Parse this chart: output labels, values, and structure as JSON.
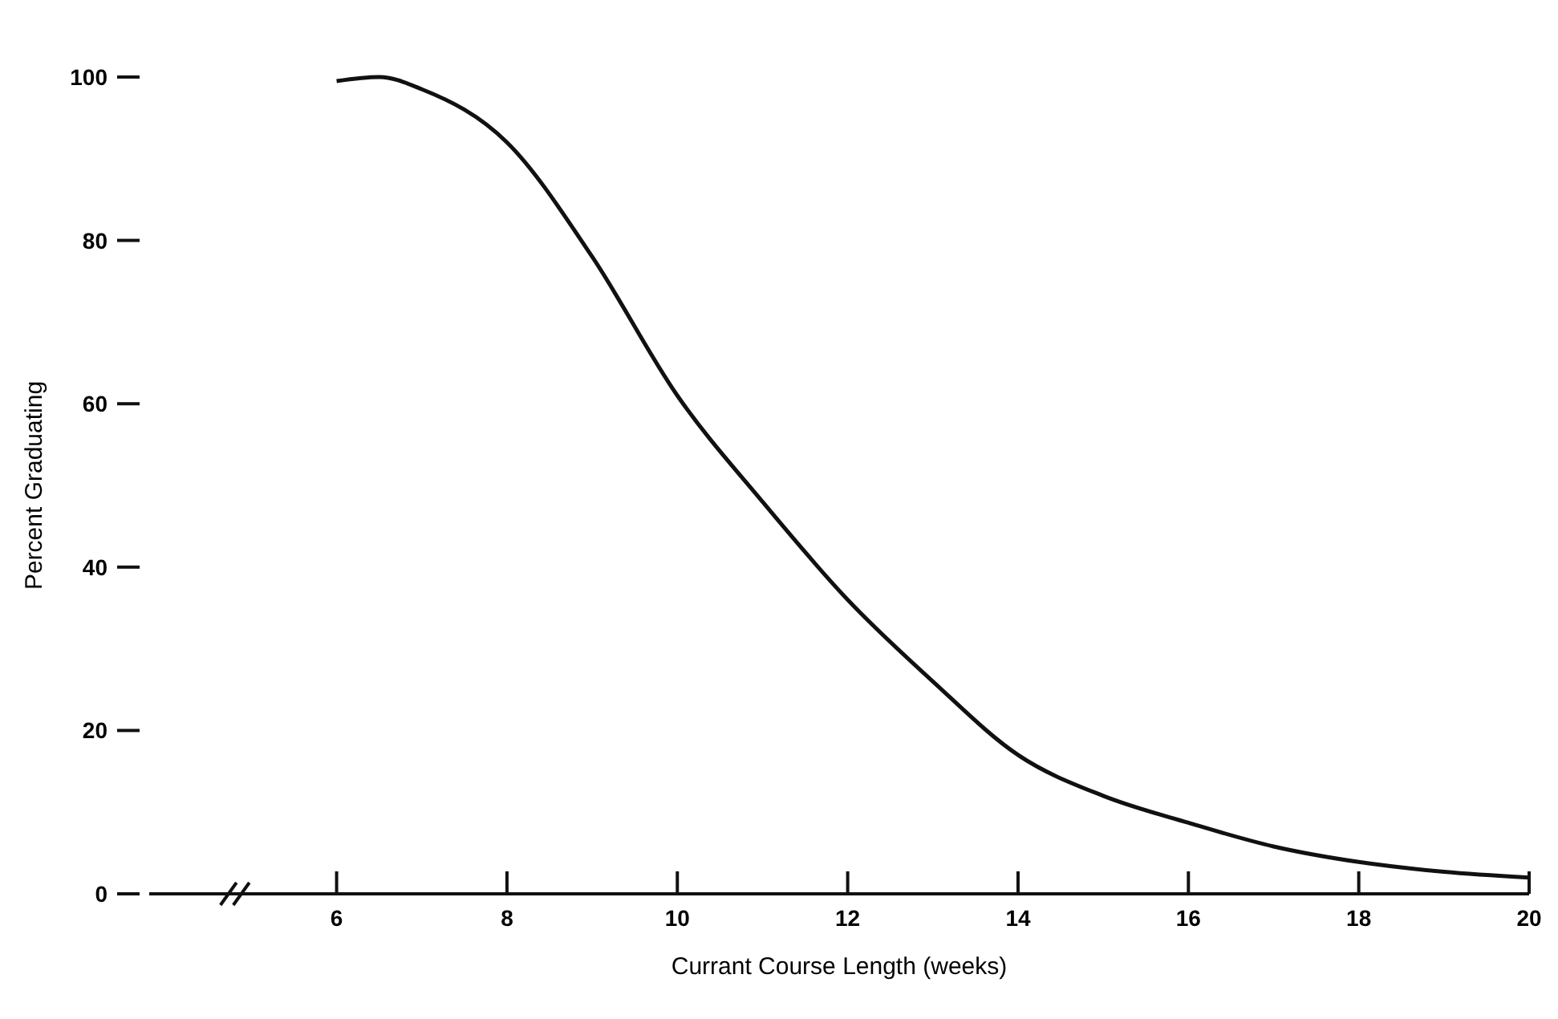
{
  "chart_data": {
    "type": "line",
    "xlabel": "Currant Course Length (weeks)",
    "ylabel": "Percent Graduating",
    "x": [
      6,
      6.5,
      7,
      8,
      9,
      10,
      11,
      12,
      13,
      14,
      15,
      16,
      17,
      18,
      19,
      20
    ],
    "series": [
      {
        "color": "#111111",
        "values": [
          99.5,
          100,
          98.5,
          92,
          78,
          61,
          48,
          36,
          26,
          17,
          12,
          8.7,
          5.8,
          3.9,
          2.7,
          2
        ]
      }
    ],
    "xlim": [
      3.8,
      20
    ],
    "xticks": [
      6,
      8,
      10,
      12,
      14,
      16,
      18,
      20
    ],
    "ylim": [
      0,
      100
    ],
    "yticks": [
      0,
      20,
      40,
      60,
      80,
      100
    ],
    "marker": "none",
    "line_style": "solid"
  }
}
